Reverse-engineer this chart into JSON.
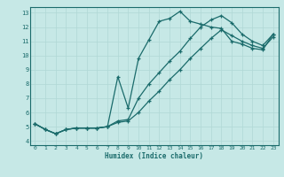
{
  "xlabel": "Humidex (Indice chaleur)",
  "xlim": [
    -0.5,
    23.5
  ],
  "ylim": [
    3.7,
    13.4
  ],
  "yticks": [
    4,
    5,
    6,
    7,
    8,
    9,
    10,
    11,
    12,
    13
  ],
  "xticks": [
    0,
    1,
    2,
    3,
    4,
    5,
    6,
    7,
    8,
    9,
    10,
    11,
    12,
    13,
    14,
    15,
    16,
    17,
    18,
    19,
    20,
    21,
    22,
    23
  ],
  "bg_color": "#c6e8e6",
  "grid_color": "#b0d8d5",
  "line_color": "#1a6b6b",
  "line1_x": [
    0,
    1,
    2,
    3,
    4,
    5,
    6,
    7,
    8,
    9,
    10,
    11,
    12,
    13,
    14,
    15,
    16,
    17,
    18,
    19,
    20,
    21,
    22,
    23
  ],
  "line1_y": [
    5.2,
    4.8,
    4.5,
    4.8,
    4.9,
    4.9,
    4.9,
    5.0,
    8.5,
    6.3,
    9.8,
    11.1,
    12.4,
    12.6,
    13.1,
    12.4,
    12.2,
    12.0,
    11.9,
    11.0,
    10.8,
    10.5,
    10.4,
    11.5
  ],
  "line2_x": [
    0,
    1,
    2,
    3,
    4,
    5,
    6,
    7,
    8,
    9,
    10,
    11,
    12,
    13,
    14,
    15,
    16,
    17,
    18,
    19,
    20,
    21,
    22,
    23
  ],
  "line2_y": [
    5.2,
    4.8,
    4.5,
    4.8,
    4.9,
    4.9,
    4.9,
    5.0,
    5.4,
    5.5,
    7.0,
    8.0,
    8.8,
    9.6,
    10.3,
    11.2,
    12.0,
    12.5,
    12.8,
    12.3,
    11.5,
    11.0,
    10.7,
    11.5
  ],
  "line3_x": [
    0,
    1,
    2,
    3,
    4,
    5,
    6,
    7,
    8,
    9,
    10,
    11,
    12,
    13,
    14,
    15,
    16,
    17,
    18,
    19,
    20,
    21,
    22,
    23
  ],
  "line3_y": [
    5.2,
    4.8,
    4.5,
    4.8,
    4.9,
    4.9,
    4.9,
    5.0,
    5.3,
    5.4,
    6.0,
    6.8,
    7.5,
    8.3,
    9.0,
    9.8,
    10.5,
    11.2,
    11.8,
    11.4,
    11.0,
    10.7,
    10.5,
    11.3
  ]
}
